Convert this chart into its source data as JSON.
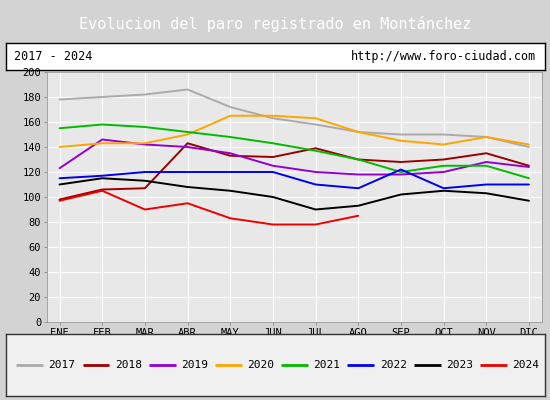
{
  "title": "Evolucion del paro registrado en Montánchez",
  "subtitle_left": "2017 - 2024",
  "subtitle_right": "http://www.foro-ciudad.com",
  "months": [
    "ENE",
    "FEB",
    "MAR",
    "ABR",
    "MAY",
    "JUN",
    "JUL",
    "AGO",
    "SEP",
    "OCT",
    "NOV",
    "DIC"
  ],
  "series": {
    "2017": [
      178,
      180,
      182,
      186,
      172,
      163,
      158,
      152,
      150,
      150,
      148,
      140
    ],
    "2018": [
      98,
      106,
      107,
      143,
      133,
      132,
      139,
      130,
      128,
      130,
      135,
      125
    ],
    "2019": [
      123,
      146,
      142,
      140,
      135,
      125,
      120,
      118,
      118,
      120,
      128,
      124
    ],
    "2020": [
      140,
      143,
      143,
      150,
      165,
      165,
      163,
      152,
      145,
      142,
      148,
      142
    ],
    "2021": [
      155,
      158,
      156,
      152,
      148,
      143,
      137,
      130,
      120,
      125,
      125,
      115
    ],
    "2022": [
      115,
      117,
      120,
      120,
      120,
      120,
      110,
      107,
      122,
      107,
      110,
      110
    ],
    "2023": [
      110,
      115,
      113,
      108,
      105,
      100,
      90,
      93,
      102,
      105,
      103,
      97
    ],
    "2024": [
      97,
      105,
      90,
      95,
      83,
      78,
      78,
      85,
      null,
      null,
      null,
      null
    ]
  },
  "colors": {
    "2017": "#aaaaaa",
    "2018": "#990000",
    "2019": "#9400d3",
    "2020": "#ffa500",
    "2021": "#00bb00",
    "2022": "#0000ee",
    "2023": "#000000",
    "2024": "#ee0000"
  },
  "ylim": [
    0,
    200
  ],
  "yticks": [
    0,
    20,
    40,
    60,
    80,
    100,
    120,
    140,
    160,
    180,
    200
  ],
  "title_bg_color": "#5b9bd5",
  "title_text_color": "#ffffff",
  "title_fontsize": 11,
  "header_bg_color": "#ffffff",
  "header_border_color": "#000000",
  "plot_bg_color": "#e8e8e8",
  "grid_color": "#ffffff",
  "fig_bg_color": "#d3d3d3",
  "legend_bg_color": "#f0f0f0",
  "legend_border_color": "#333333"
}
